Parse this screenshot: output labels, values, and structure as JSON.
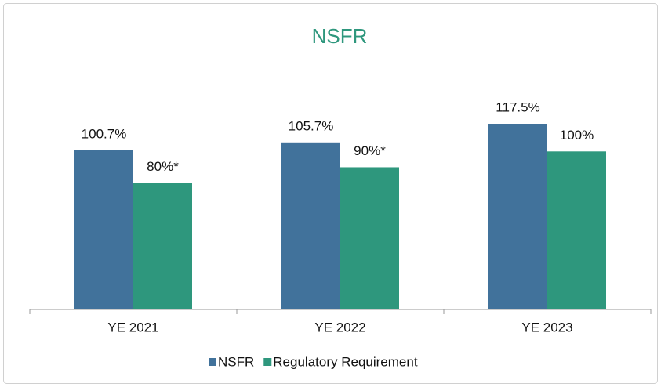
{
  "chart_data": {
    "type": "bar",
    "title": "NSFR",
    "categories": [
      "YE 2021",
      "YE 2022",
      "YE 2023"
    ],
    "series": [
      {
        "name": "NSFR",
        "color": "#41729b",
        "values": [
          100.7,
          105.7,
          117.5
        ],
        "value_labels": [
          "100.7%",
          "105.7%",
          "117.5%"
        ]
      },
      {
        "name": "Regulatory Requirement",
        "color": "#2e977d",
        "values": [
          80,
          90,
          100
        ],
        "value_labels": [
          "80%*",
          "90%*",
          "100%"
        ]
      }
    ],
    "title_color": "#2e977d"
  }
}
